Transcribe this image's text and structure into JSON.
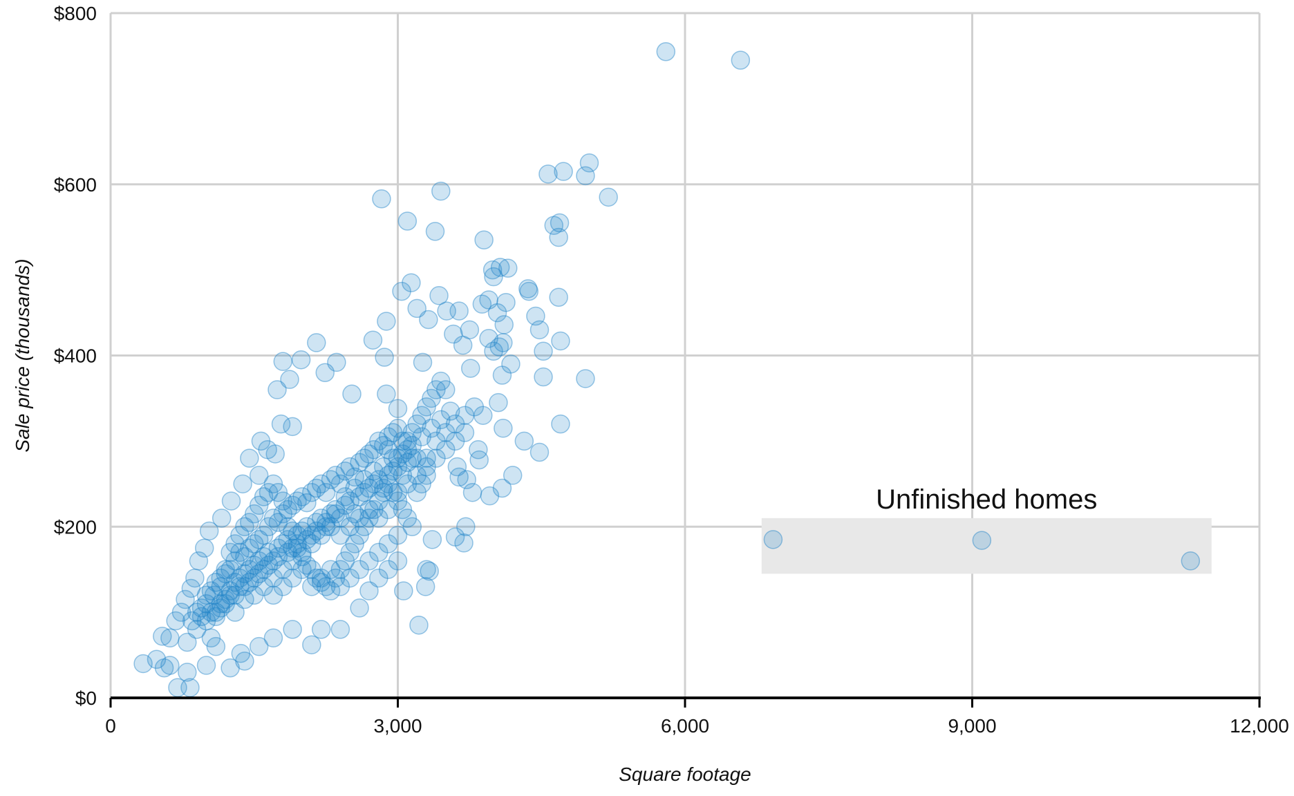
{
  "chart_data": {
    "type": "scatter",
    "xlabel": "Square footage",
    "ylabel": "Sale price (thousands)",
    "xlim": [
      0,
      12000
    ],
    "ylim": [
      0,
      800
    ],
    "x_ticks": [
      0,
      3000,
      6000,
      9000,
      12000
    ],
    "x_tick_labels": [
      "0",
      "3,000",
      "6,000",
      "9,000",
      "12,000"
    ],
    "y_ticks": [
      0,
      200,
      400,
      600,
      800
    ],
    "y_tick_labels": [
      "$0",
      "$200",
      "$400",
      "$600",
      "$800"
    ],
    "grid": true,
    "point_color": "#1f83c8",
    "points": [
      [
        5800,
        755
      ],
      [
        6580,
        745
      ],
      [
        5000,
        625
      ],
      [
        4960,
        610
      ],
      [
        4730,
        615
      ],
      [
        4570,
        612
      ],
      [
        5200,
        585
      ],
      [
        2830,
        583
      ],
      [
        3450,
        592
      ],
      [
        3100,
        557
      ],
      [
        3390,
        545
      ],
      [
        4690,
        555
      ],
      [
        4630,
        552
      ],
      [
        4680,
        538
      ],
      [
        3900,
        535
      ],
      [
        4150,
        502
      ],
      [
        3990,
        500
      ],
      [
        4070,
        503
      ],
      [
        4000,
        492
      ],
      [
        3140,
        485
      ],
      [
        3040,
        475
      ],
      [
        4360,
        478
      ],
      [
        4370,
        475
      ],
      [
        4680,
        468
      ],
      [
        3430,
        470
      ],
      [
        3950,
        465
      ],
      [
        3880,
        460
      ],
      [
        4130,
        462
      ],
      [
        4040,
        450
      ],
      [
        4110,
        436
      ],
      [
        4440,
        446
      ],
      [
        3320,
        442
      ],
      [
        3750,
        430
      ],
      [
        2880,
        440
      ],
      [
        3200,
        455
      ],
      [
        3510,
        452
      ],
      [
        3640,
        452
      ],
      [
        4480,
        430
      ],
      [
        2150,
        415
      ],
      [
        2740,
        418
      ],
      [
        3580,
        425
      ],
      [
        3680,
        412
      ],
      [
        3950,
        420
      ],
      [
        4100,
        415
      ],
      [
        4700,
        417
      ],
      [
        4520,
        405
      ],
      [
        4000,
        405
      ],
      [
        4060,
        410
      ],
      [
        1800,
        393
      ],
      [
        1990,
        395
      ],
      [
        2360,
        392
      ],
      [
        2240,
        380
      ],
      [
        1870,
        372
      ],
      [
        2860,
        398
      ],
      [
        3260,
        392
      ],
      [
        3760,
        385
      ],
      [
        4090,
        377
      ],
      [
        4180,
        390
      ],
      [
        4520,
        375
      ],
      [
        4960,
        373
      ],
      [
        1740,
        360
      ],
      [
        2520,
        355
      ],
      [
        2880,
        355
      ],
      [
        3500,
        360
      ],
      [
        4050,
        345
      ],
      [
        3000,
        338
      ],
      [
        3890,
        330
      ],
      [
        4700,
        320
      ],
      [
        4100,
        315
      ],
      [
        4320,
        300
      ],
      [
        4480,
        287
      ],
      [
        3840,
        290
      ],
      [
        3850,
        278
      ],
      [
        4200,
        260
      ],
      [
        4090,
        245
      ],
      [
        3960,
        236
      ],
      [
        3780,
        240
      ],
      [
        3720,
        255
      ],
      [
        3620,
        270
      ],
      [
        3640,
        258
      ],
      [
        3710,
        200
      ],
      [
        3600,
        188
      ],
      [
        3690,
        181
      ],
      [
        3360,
        185
      ],
      [
        3300,
        150
      ],
      [
        3330,
        148
      ],
      [
        3290,
        130
      ],
      [
        3060,
        125
      ],
      [
        3220,
        85
      ],
      [
        1780,
        320
      ],
      [
        1900,
        317
      ],
      [
        1570,
        300
      ],
      [
        1640,
        290
      ],
      [
        1720,
        285
      ],
      [
        1450,
        280
      ],
      [
        1550,
        260
      ],
      [
        1380,
        250
      ],
      [
        1260,
        230
      ],
      [
        1160,
        210
      ],
      [
        1030,
        195
      ],
      [
        980,
        175
      ],
      [
        920,
        160
      ],
      [
        880,
        140
      ],
      [
        840,
        128
      ],
      [
        780,
        115
      ],
      [
        740,
        100
      ],
      [
        680,
        90
      ],
      [
        620,
        70
      ],
      [
        540,
        72
      ],
      [
        480,
        45
      ],
      [
        340,
        40
      ],
      [
        560,
        35
      ],
      [
        620,
        38
      ],
      [
        800,
        30
      ],
      [
        700,
        12
      ],
      [
        830,
        12
      ],
      [
        1000,
        38
      ],
      [
        1250,
        35
      ],
      [
        1400,
        43
      ],
      [
        1360,
        52
      ],
      [
        1550,
        60
      ],
      [
        2100,
        62
      ],
      [
        2200,
        80
      ],
      [
        2400,
        80
      ],
      [
        2600,
        105
      ],
      [
        2700,
        125
      ],
      [
        2800,
        140
      ],
      [
        2900,
        150
      ],
      [
        3000,
        160
      ],
      [
        1900,
        80
      ],
      [
        1700,
        70
      ],
      [
        1100,
        60
      ],
      [
        1050,
        70
      ],
      [
        800,
        65
      ],
      [
        900,
        80
      ],
      [
        6920,
        185
      ],
      [
        9100,
        184
      ],
      [
        11280,
        160
      ],
      [
        1000,
        110
      ],
      [
        1080,
        120
      ],
      [
        1150,
        130
      ],
      [
        1200,
        145
      ],
      [
        1250,
        150
      ],
      [
        1300,
        160
      ],
      [
        1350,
        170
      ],
      [
        1400,
        165
      ],
      [
        1450,
        175
      ],
      [
        1500,
        180
      ],
      [
        1550,
        185
      ],
      [
        1600,
        190
      ],
      [
        1650,
        200
      ],
      [
        1700,
        210
      ],
      [
        1750,
        205
      ],
      [
        1800,
        215
      ],
      [
        1850,
        220
      ],
      [
        1900,
        225
      ],
      [
        1950,
        230
      ],
      [
        2000,
        235
      ],
      [
        2050,
        228
      ],
      [
        2100,
        240
      ],
      [
        2150,
        245
      ],
      [
        2200,
        250
      ],
      [
        2250,
        240
      ],
      [
        2300,
        255
      ],
      [
        2350,
        260
      ],
      [
        2400,
        250
      ],
      [
        2450,
        265
      ],
      [
        2500,
        270
      ],
      [
        2550,
        258
      ],
      [
        2600,
        275
      ],
      [
        2650,
        280
      ],
      [
        2700,
        285
      ],
      [
        2750,
        290
      ],
      [
        2800,
        300
      ],
      [
        2850,
        295
      ],
      [
        2900,
        305
      ],
      [
        2950,
        310
      ],
      [
        3000,
        315
      ],
      [
        3050,
        300
      ],
      [
        3100,
        290
      ],
      [
        3150,
        310
      ],
      [
        3200,
        320
      ],
      [
        3250,
        330
      ],
      [
        3300,
        340
      ],
      [
        3350,
        350
      ],
      [
        3400,
        360
      ],
      [
        3450,
        370
      ],
      [
        1100,
        95
      ],
      [
        1150,
        105
      ],
      [
        1200,
        115
      ],
      [
        1250,
        125
      ],
      [
        1300,
        135
      ],
      [
        1350,
        140
      ],
      [
        1400,
        145
      ],
      [
        1450,
        150
      ],
      [
        1500,
        155
      ],
      [
        1550,
        160
      ],
      [
        1600,
        165
      ],
      [
        1650,
        170
      ],
      [
        1700,
        160
      ],
      [
        1750,
        175
      ],
      [
        1800,
        180
      ],
      [
        1850,
        185
      ],
      [
        1900,
        175
      ],
      [
        1950,
        190
      ],
      [
        2000,
        195
      ],
      [
        2050,
        200
      ],
      [
        2100,
        190
      ],
      [
        2150,
        205
      ],
      [
        2200,
        210
      ],
      [
        2250,
        200
      ],
      [
        2300,
        215
      ],
      [
        2350,
        220
      ],
      [
        2400,
        210
      ],
      [
        2450,
        225
      ],
      [
        2500,
        230
      ],
      [
        2550,
        215
      ],
      [
        2600,
        235
      ],
      [
        2650,
        240
      ],
      [
        2700,
        245
      ],
      [
        2750,
        250
      ],
      [
        2800,
        255
      ],
      [
        2850,
        245
      ],
      [
        2900,
        260
      ],
      [
        2950,
        265
      ],
      [
        3000,
        270
      ],
      [
        3050,
        260
      ],
      [
        3100,
        275
      ],
      [
        3150,
        280
      ],
      [
        900,
        100
      ],
      [
        950,
        105
      ],
      [
        1000,
        120
      ],
      [
        1050,
        125
      ],
      [
        1100,
        135
      ],
      [
        1150,
        140
      ],
      [
        1200,
        150
      ],
      [
        1250,
        170
      ],
      [
        1300,
        180
      ],
      [
        1350,
        190
      ],
      [
        1400,
        200
      ],
      [
        1450,
        205
      ],
      [
        1500,
        215
      ],
      [
        1550,
        225
      ],
      [
        1600,
        235
      ],
      [
        1650,
        240
      ],
      [
        1700,
        250
      ],
      [
        1750,
        240
      ],
      [
        1800,
        230
      ],
      [
        1850,
        200
      ],
      [
        1900,
        195
      ],
      [
        1950,
        175
      ],
      [
        2000,
        165
      ],
      [
        2050,
        155
      ],
      [
        2100,
        150
      ],
      [
        2150,
        140
      ],
      [
        2200,
        135
      ],
      [
        2250,
        130
      ],
      [
        2300,
        125
      ],
      [
        2350,
        140
      ],
      [
        2400,
        150
      ],
      [
        2450,
        160
      ],
      [
        2500,
        170
      ],
      [
        2550,
        180
      ],
      [
        2600,
        190
      ],
      [
        2650,
        200
      ],
      [
        2700,
        210
      ],
      [
        2750,
        220
      ],
      [
        2800,
        230
      ],
      [
        2850,
        240
      ],
      [
        2900,
        250
      ],
      [
        2950,
        240
      ],
      [
        3000,
        230
      ],
      [
        3050,
        220
      ],
      [
        3100,
        210
      ],
      [
        3150,
        200
      ],
      [
        3200,
        240
      ],
      [
        3250,
        250
      ],
      [
        3300,
        260
      ],
      [
        1300,
        120
      ],
      [
        1400,
        130
      ],
      [
        1500,
        140
      ],
      [
        1600,
        150
      ],
      [
        1700,
        140
      ],
      [
        1800,
        150
      ],
      [
        1900,
        160
      ],
      [
        2000,
        170
      ],
      [
        2100,
        180
      ],
      [
        2200,
        190
      ],
      [
        2300,
        200
      ],
      [
        2400,
        190
      ],
      [
        2500,
        200
      ],
      [
        2600,
        210
      ],
      [
        2700,
        220
      ],
      [
        2800,
        210
      ],
      [
        2900,
        220
      ],
      [
        3000,
        240
      ],
      [
        3100,
        250
      ],
      [
        3200,
        260
      ],
      [
        3300,
        280
      ],
      [
        3400,
        300
      ],
      [
        3500,
        310
      ],
      [
        3600,
        320
      ],
      [
        3700,
        330
      ],
      [
        3800,
        340
      ],
      [
        3400,
        280
      ],
      [
        3500,
        290
      ],
      [
        3600,
        300
      ],
      [
        3700,
        310
      ],
      [
        3300,
        270
      ],
      [
        3200,
        280
      ],
      [
        3100,
        300
      ],
      [
        3000,
        280
      ],
      [
        2900,
        290
      ],
      [
        1000,
        90
      ],
      [
        1100,
        100
      ],
      [
        1200,
        110
      ],
      [
        1300,
        100
      ],
      [
        1400,
        115
      ],
      [
        1500,
        120
      ],
      [
        1600,
        130
      ],
      [
        1700,
        120
      ],
      [
        1800,
        130
      ],
      [
        1900,
        140
      ],
      [
        2000,
        150
      ],
      [
        2100,
        130
      ],
      [
        2200,
        140
      ],
      [
        2300,
        150
      ],
      [
        2400,
        130
      ],
      [
        2500,
        140
      ],
      [
        2600,
        150
      ],
      [
        2700,
        160
      ],
      [
        2800,
        170
      ],
      [
        2900,
        180
      ],
      [
        3000,
        190
      ],
      [
        850,
        90
      ],
      [
        950,
        95
      ],
      [
        1050,
        100
      ],
      [
        1150,
        110
      ],
      [
        1250,
        120
      ],
      [
        1350,
        130
      ],
      [
        1450,
        135
      ],
      [
        1550,
        145
      ],
      [
        1650,
        155
      ],
      [
        1750,
        165
      ],
      [
        1850,
        170
      ],
      [
        1950,
        180
      ],
      [
        2050,
        185
      ],
      [
        2150,
        195
      ],
      [
        2250,
        205
      ],
      [
        2350,
        215
      ],
      [
        2450,
        235
      ],
      [
        2550,
        245
      ],
      [
        2650,
        255
      ],
      [
        2750,
        265
      ],
      [
        2850,
        270
      ],
      [
        2950,
        280
      ],
      [
        3050,
        285
      ],
      [
        3150,
        295
      ],
      [
        3250,
        305
      ],
      [
        3350,
        315
      ],
      [
        3450,
        325
      ],
      [
        3550,
        335
      ]
    ],
    "annotation": {
      "label": "Unfinished homes",
      "x_range": [
        6800,
        11500
      ],
      "y_range": [
        145,
        210
      ],
      "fill": "#e8e8e8"
    }
  }
}
